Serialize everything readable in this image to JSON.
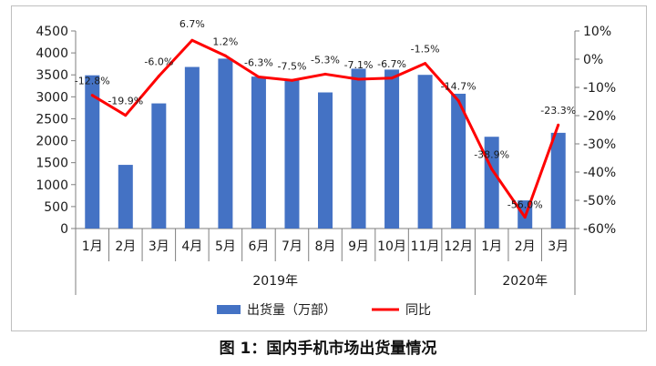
{
  "chart_data": {
    "type": "bar+line",
    "categories": [
      "1月",
      "2月",
      "3月",
      "4月",
      "5月",
      "6月",
      "7月",
      "8月",
      "9月",
      "10月",
      "11月",
      "12月",
      "1月",
      "2月",
      "3月"
    ],
    "year_groups": [
      {
        "label": "2019年",
        "span": 12
      },
      {
        "label": "2020年",
        "span": 3
      }
    ],
    "series": [
      {
        "name": "出货量（万部）",
        "type": "bar",
        "axis": "left",
        "color": "#4472c4",
        "values": [
          3490,
          1450,
          2850,
          3680,
          3870,
          3460,
          3380,
          3100,
          3640,
          3620,
          3500,
          3070,
          2090,
          640,
          2180
        ]
      },
      {
        "name": "同比",
        "type": "line",
        "axis": "right",
        "color": "#ff0000",
        "values": [
          -12.8,
          -19.9,
          -6.0,
          6.7,
          1.2,
          -6.3,
          -7.5,
          -5.3,
          -7.1,
          -6.7,
          -1.5,
          -14.7,
          -38.9,
          -56.0,
          -23.3
        ],
        "labels": [
          "-12.8%",
          "-19.9%",
          "-6.0%",
          "6.7%",
          "1.2%",
          "-6.3%",
          "-7.5%",
          "-5.3%",
          "-7.1%",
          "-6.7%",
          "-1.5%",
          "-14.7%",
          "-38.9%",
          "-56.0%",
          "-23.3%"
        ]
      }
    ],
    "y_left": {
      "range": [
        0,
        4500
      ],
      "ticks": [
        0,
        500,
        1000,
        1500,
        2000,
        2500,
        3000,
        3500,
        4000,
        4500
      ]
    },
    "y_right": {
      "range": [
        -60,
        10
      ],
      "ticks": [
        -60,
        -50,
        -40,
        -30,
        -20,
        -10,
        0,
        10
      ],
      "tick_labels": [
        "-60%",
        "-50%",
        "-40%",
        "-30%",
        "-20%",
        "-10%",
        "0%",
        "10%"
      ]
    },
    "grid": false,
    "legend": "bottom"
  },
  "caption": "图 1：国内手机市场出货量情况"
}
